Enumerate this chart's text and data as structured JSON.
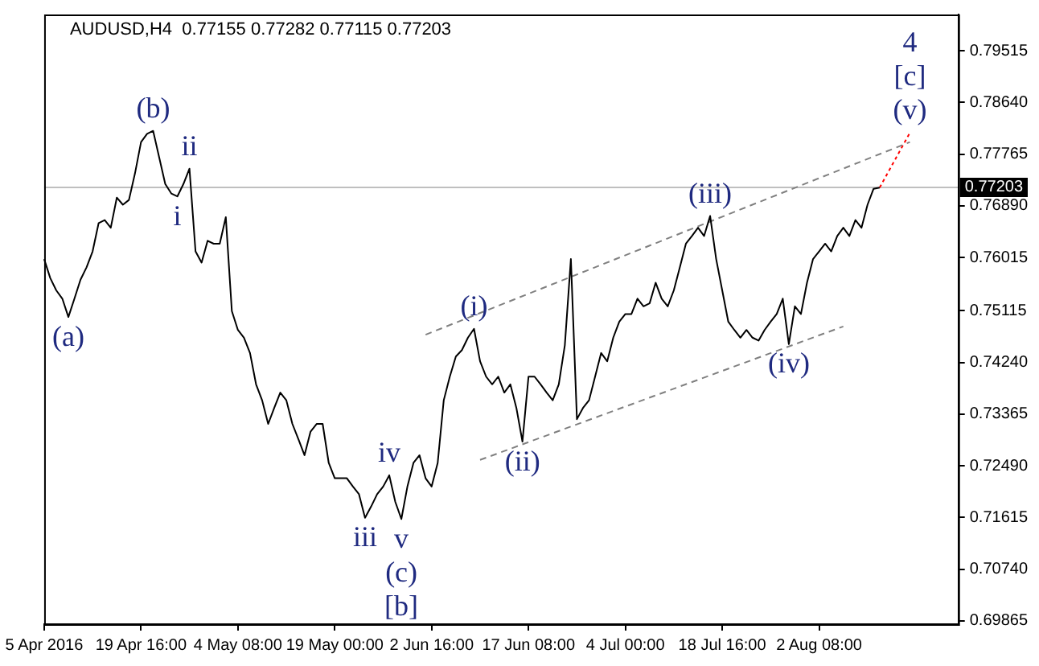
{
  "chart_data": {
    "type": "line",
    "title": "AUDUSD,H4  0.77155 0.77282 0.77115 0.77203",
    "categories": [
      "5 Apr 2016",
      null,
      null,
      null,
      null,
      null,
      null,
      null,
      null,
      null,
      null,
      null,
      null,
      null,
      null,
      null,
      "19 Apr 16:00",
      null,
      null,
      null,
      null,
      null,
      null,
      null,
      null,
      null,
      null,
      null,
      null,
      null,
      null,
      null,
      "4 May 08:00",
      null,
      null,
      null,
      null,
      null,
      null,
      null,
      null,
      null,
      null,
      null,
      null,
      null,
      null,
      null,
      "19 May 00:00",
      null,
      null,
      null,
      null,
      null,
      null,
      null,
      null,
      null,
      null,
      null,
      null,
      null,
      null,
      null,
      "2 Jun 16:00",
      null,
      null,
      null,
      null,
      null,
      null,
      null,
      null,
      null,
      null,
      null,
      null,
      null,
      null,
      null,
      "17 Jun 08:00",
      null,
      null,
      null,
      null,
      null,
      null,
      null,
      null,
      null,
      null,
      null,
      null,
      null,
      null,
      null,
      "4 Jul 00:00",
      null,
      null,
      null,
      null,
      null,
      null,
      null,
      null,
      null,
      null,
      null,
      null,
      null,
      null,
      null,
      "18 Jul 16:00",
      null,
      null,
      null,
      null,
      null,
      null,
      null,
      null,
      null,
      null,
      null,
      null,
      null,
      null,
      null,
      "2 Aug 08:00",
      null,
      null,
      null,
      null,
      null,
      null,
      null,
      null,
      null,
      null,
      null,
      null,
      null,
      null,
      null,
      null,
      null,
      null,
      null,
      null,
      null,
      null,
      null
    ],
    "ylim": [
      0.6981,
      0.8013
    ],
    "yticks": [
      0.79515,
      {
        "value": 0.7864,
        "label": "0.78640"
      },
      0.77765,
      {
        "value": 0.7689,
        "label": "0.76890"
      },
      0.76015,
      0.75115,
      {
        "value": 0.7424,
        "label": "0.74240"
      },
      0.73365,
      {
        "value": 0.7249,
        "label": "0.72490"
      },
      0.71615,
      {
        "value": 0.7074,
        "label": "0.70740"
      },
      0.69865
    ],
    "grid": false,
    "legend": false,
    "marker": "none",
    "series": [
      {
        "color": "#000000",
        "line_style": "solid",
        "values": [
          0.7599,
          0.7567,
          0.7546,
          0.7532,
          0.7501,
          0.7532,
          0.7564,
          0.7585,
          0.7612,
          0.766,
          0.7665,
          0.7652,
          0.7703,
          0.7691,
          0.7699,
          0.7744,
          0.7797,
          0.7811,
          0.7816,
          0.7771,
          0.7726,
          0.771,
          0.7705,
          0.7726,
          0.7752,
          0.7612,
          0.7593,
          0.763,
          0.7625,
          0.7625,
          0.767,
          0.7511,
          0.7479,
          0.7466,
          0.744,
          0.7387,
          0.736,
          0.732,
          0.7347,
          0.7373,
          0.736,
          0.732,
          0.7294,
          0.7267,
          0.7307,
          0.732,
          0.732,
          0.7254,
          0.7228,
          0.7228,
          0.7228,
          0.7214,
          0.7201,
          0.7161,
          0.718,
          0.7201,
          0.7214,
          0.7233,
          0.7188,
          0.7159,
          0.7214,
          0.7254,
          0.7267,
          0.7228,
          0.7214,
          0.7254,
          0.736,
          0.74,
          0.7434,
          0.7445,
          0.7466,
          0.7481,
          0.7426,
          0.74,
          0.7387,
          0.74,
          0.7373,
          0.7387,
          0.7347,
          0.729,
          0.74,
          0.74,
          0.7387,
          0.7373,
          0.736,
          0.7387,
          0.7453,
          0.7599,
          0.7328,
          0.7347,
          0.736,
          0.74,
          0.744,
          0.7426,
          0.7466,
          0.7493,
          0.7506,
          0.7506,
          0.7532,
          0.7519,
          0.7524,
          0.7559,
          0.7532,
          0.7519,
          0.7546,
          0.7585,
          0.7625,
          0.7638,
          0.7652,
          0.7638,
          0.7672,
          0.7599,
          0.7546,
          0.7493,
          0.7479,
          0.7466,
          0.7479,
          0.7466,
          0.7461,
          0.7479,
          0.7493,
          0.7506,
          0.7532,
          0.7455,
          0.7519,
          0.7506,
          0.7559,
          0.7599,
          0.7612,
          0.7625,
          0.7612,
          0.7638,
          0.7652,
          0.7638,
          0.7665,
          0.7652,
          0.7691,
          0.7718,
          0.772,
          null,
          null,
          null,
          null,
          null,
          null,
          null,
          null,
          null,
          null,
          null,
          null,
          null
        ]
      },
      {
        "color": "#808080",
        "line_style": "dashed",
        "values": [
          null,
          null,
          null,
          null,
          null,
          null,
          null,
          null,
          null,
          null,
          null,
          null,
          null,
          null,
          null,
          null,
          null,
          null,
          null,
          null,
          null,
          null,
          null,
          null,
          null,
          null,
          null,
          null,
          null,
          null,
          null,
          null,
          null,
          null,
          null,
          null,
          null,
          null,
          null,
          null,
          null,
          null,
          null,
          null,
          null,
          null,
          null,
          null,
          null,
          null,
          null,
          null,
          null,
          null,
          null,
          null,
          null,
          null,
          null,
          null,
          null,
          null,
          null,
          0.7471,
          null,
          null,
          null,
          null,
          null,
          null,
          null,
          null,
          null,
          null,
          null,
          null,
          null,
          null,
          null,
          null,
          null,
          null,
          null,
          null,
          null,
          null,
          null,
          null,
          null,
          null,
          null,
          null,
          null,
          null,
          null,
          null,
          null,
          null,
          null,
          null,
          null,
          null,
          null,
          null,
          null,
          null,
          null,
          null,
          null,
          null,
          null,
          null,
          null,
          null,
          null,
          null,
          null,
          null,
          null,
          null,
          null,
          null,
          null,
          null,
          null,
          null,
          null,
          null,
          null,
          null,
          null,
          null,
          null,
          null,
          null,
          null,
          null,
          null,
          null,
          null,
          null,
          null,
          null,
          0.7797,
          null,
          null,
          null,
          null,
          null,
          null,
          null,
          null
        ]
      },
      {
        "color": "#808080",
        "line_style": "dashed",
        "values": [
          null,
          null,
          null,
          null,
          null,
          null,
          null,
          null,
          null,
          null,
          null,
          null,
          null,
          null,
          null,
          null,
          null,
          null,
          null,
          null,
          null,
          null,
          null,
          null,
          null,
          null,
          null,
          null,
          null,
          null,
          null,
          null,
          null,
          null,
          null,
          null,
          null,
          null,
          null,
          null,
          null,
          null,
          null,
          null,
          null,
          null,
          null,
          null,
          null,
          null,
          null,
          null,
          null,
          null,
          null,
          null,
          null,
          null,
          null,
          null,
          null,
          null,
          null,
          null,
          null,
          null,
          null,
          null,
          null,
          null,
          null,
          null,
          0.7259,
          null,
          null,
          null,
          null,
          null,
          null,
          null,
          null,
          null,
          null,
          null,
          null,
          null,
          null,
          null,
          null,
          null,
          null,
          null,
          null,
          null,
          null,
          null,
          null,
          null,
          null,
          null,
          null,
          null,
          null,
          null,
          null,
          null,
          null,
          null,
          null,
          null,
          null,
          null,
          null,
          null,
          null,
          null,
          null,
          null,
          null,
          null,
          null,
          null,
          null,
          null,
          null,
          null,
          null,
          null,
          null,
          null,
          null,
          null,
          0.7485,
          null,
          null,
          null,
          null,
          null,
          null,
          null,
          null,
          null,
          null,
          null,
          null,
          null,
          null,
          null,
          null,
          null,
          null,
          null
        ]
      },
      {
        "color": "#ff0000",
        "line_style": "dotted",
        "values": [
          null,
          null,
          null,
          null,
          null,
          null,
          null,
          null,
          null,
          null,
          null,
          null,
          null,
          null,
          null,
          null,
          null,
          null,
          null,
          null,
          null,
          null,
          null,
          null,
          null,
          null,
          null,
          null,
          null,
          null,
          null,
          null,
          null,
          null,
          null,
          null,
          null,
          null,
          null,
          null,
          null,
          null,
          null,
          null,
          null,
          null,
          null,
          null,
          null,
          null,
          null,
          null,
          null,
          null,
          null,
          null,
          null,
          null,
          null,
          null,
          null,
          null,
          null,
          null,
          null,
          null,
          null,
          null,
          null,
          null,
          null,
          null,
          null,
          null,
          null,
          null,
          null,
          null,
          null,
          null,
          null,
          null,
          null,
          null,
          null,
          null,
          null,
          null,
          null,
          null,
          null,
          null,
          null,
          null,
          null,
          null,
          null,
          null,
          null,
          null,
          null,
          null,
          null,
          null,
          null,
          null,
          null,
          null,
          null,
          null,
          null,
          null,
          null,
          null,
          null,
          null,
          null,
          null,
          null,
          null,
          null,
          null,
          null,
          null,
          null,
          null,
          null,
          null,
          null,
          null,
          null,
          null,
          null,
          null,
          null,
          null,
          null,
          null,
          0.772,
          null,
          null,
          null,
          null,
          0.7813,
          null,
          null,
          null,
          null,
          null,
          null,
          null,
          null
        ]
      }
    ],
    "ref_lines": [
      {
        "axis": "y",
        "value": 0.77203,
        "label": "0.77203",
        "color": "#000000"
      }
    ],
    "annotations": [
      {
        "text": "(a)",
        "y": 0.7501
      },
      {
        "text": "(b)",
        "y": 0.7816
      },
      {
        "text": "ii",
        "y": 0.7752
      },
      {
        "text": "i",
        "y": 0.7705
      },
      {
        "text": "iv",
        "y": 0.7233
      },
      {
        "text": "iii",
        "y": 0.7161
      },
      {
        "text": "v",
        "y": 0.7159
      },
      {
        "text": "(c)",
        "y": 0.7159
      },
      {
        "text": "[b]",
        "y": 0.7159
      },
      {
        "text": "(i)",
        "y": 0.7481
      },
      {
        "text": "(ii)",
        "y": 0.729
      },
      {
        "text": "(iii)",
        "y": 0.7672
      },
      {
        "text": "(iv)",
        "y": 0.7455
      },
      {
        "text": "(v)",
        "y": 0.7813
      },
      {
        "text": "[c]",
        "y": 0.7813
      },
      {
        "text": "4",
        "y": 0.7813
      }
    ]
  }
}
